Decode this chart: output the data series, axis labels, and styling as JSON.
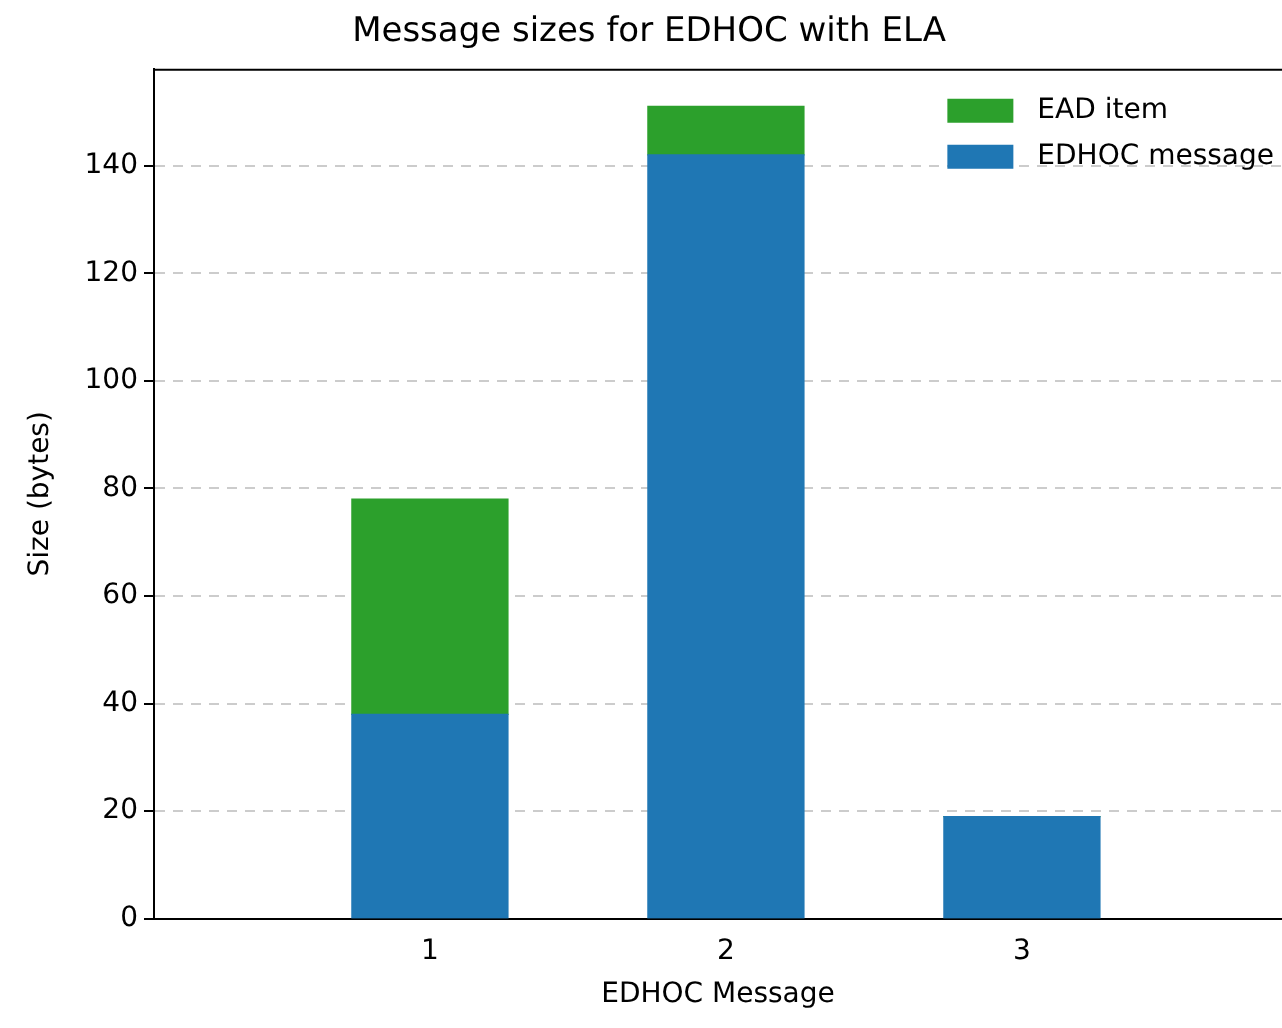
{
  "chart_data": {
    "type": "bar",
    "title": "Message sizes for EDHOC with ELA",
    "xlabel": "EDHOC Message",
    "ylabel": "Size (bytes)",
    "categories": [
      "1",
      "2",
      "3"
    ],
    "stacked": true,
    "series": [
      {
        "name": "EDHOC message",
        "color": "#1f77b4",
        "values": [
          38,
          142,
          19
        ]
      },
      {
        "name": "EAD item",
        "color": "#2ca02c",
        "values": [
          40,
          9,
          0
        ]
      }
    ],
    "ylim": [
      0,
      158
    ],
    "yticks": [
      0,
      20,
      40,
      60,
      80,
      100,
      120,
      140
    ],
    "grid": "y",
    "legend": "top right"
  }
}
